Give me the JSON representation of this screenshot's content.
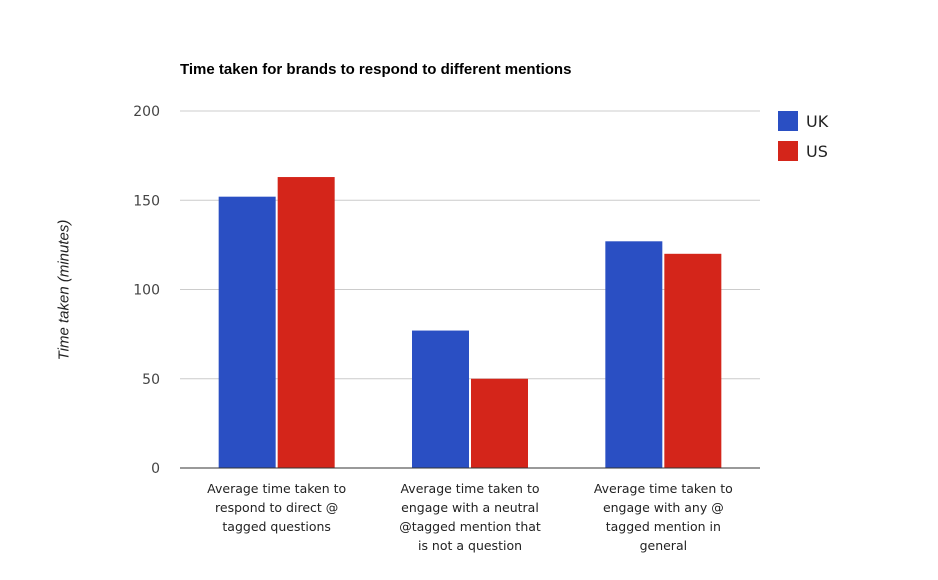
{
  "chart_data": {
    "type": "bar",
    "title": "Time taken for brands to respond to different mentions",
    "xlabel": "",
    "ylabel": "Time taken (minutes)",
    "ylim": [
      0,
      200
    ],
    "yticks": [
      0,
      50,
      100,
      150,
      200
    ],
    "grid": true,
    "legend_position": "right",
    "categories": [
      [
        "Average time taken to",
        "respond to direct @",
        "tagged questions"
      ],
      [
        "Average time taken to",
        "engage with a neutral",
        "@tagged mention that",
        "is not a question"
      ],
      [
        "Average time taken to",
        "engage with any @",
        "tagged mention in",
        "general"
      ]
    ],
    "series": [
      {
        "name": "UK",
        "color": "#2a4fc3",
        "values": [
          152,
          77,
          127
        ]
      },
      {
        "name": "US",
        "color": "#d4251a",
        "values": [
          163,
          50,
          120
        ]
      }
    ]
  }
}
